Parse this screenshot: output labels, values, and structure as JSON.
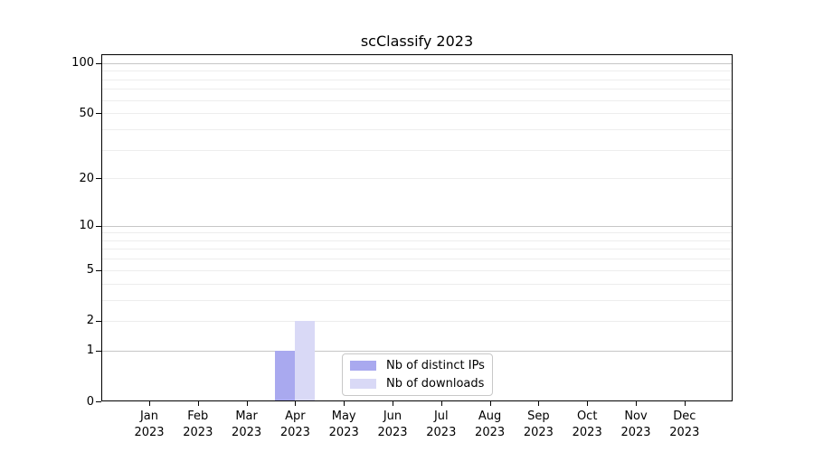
{
  "chart_data": {
    "type": "bar",
    "title": "scClassify 2023",
    "categories": [
      "Jan",
      "Feb",
      "Mar",
      "Apr",
      "May",
      "Jun",
      "Jul",
      "Aug",
      "Sep",
      "Oct",
      "Nov",
      "Dec"
    ],
    "year_label": "2023",
    "series": [
      {
        "name": "Nb of distinct IPs",
        "color": "#a9a9ef",
        "values": [
          0,
          0,
          0,
          1,
          0,
          0,
          0,
          0,
          0,
          0,
          0,
          0
        ]
      },
      {
        "name": "Nb of downloads",
        "color": "#d9d9f6",
        "values": [
          0,
          0,
          0,
          2,
          0,
          0,
          0,
          0,
          0,
          0,
          0,
          0
        ]
      }
    ],
    "yscale": "log1p",
    "ylim": [
      0,
      113
    ],
    "yticks": [
      0,
      1,
      2,
      5,
      10,
      20,
      50,
      100
    ],
    "grid": {
      "major": [
        1,
        10,
        100
      ],
      "minor": [
        2,
        3,
        4,
        5,
        6,
        7,
        8,
        9,
        20,
        30,
        40,
        50,
        60,
        70,
        80,
        90
      ],
      "major_color": "#c6c6c6",
      "minor_color": "#ededed"
    },
    "legend": {
      "position": "lower center",
      "entries": [
        "Nb of distinct IPs",
        "Nb of downloads"
      ]
    },
    "axis_color": "#000000",
    "background": "#ffffff"
  }
}
